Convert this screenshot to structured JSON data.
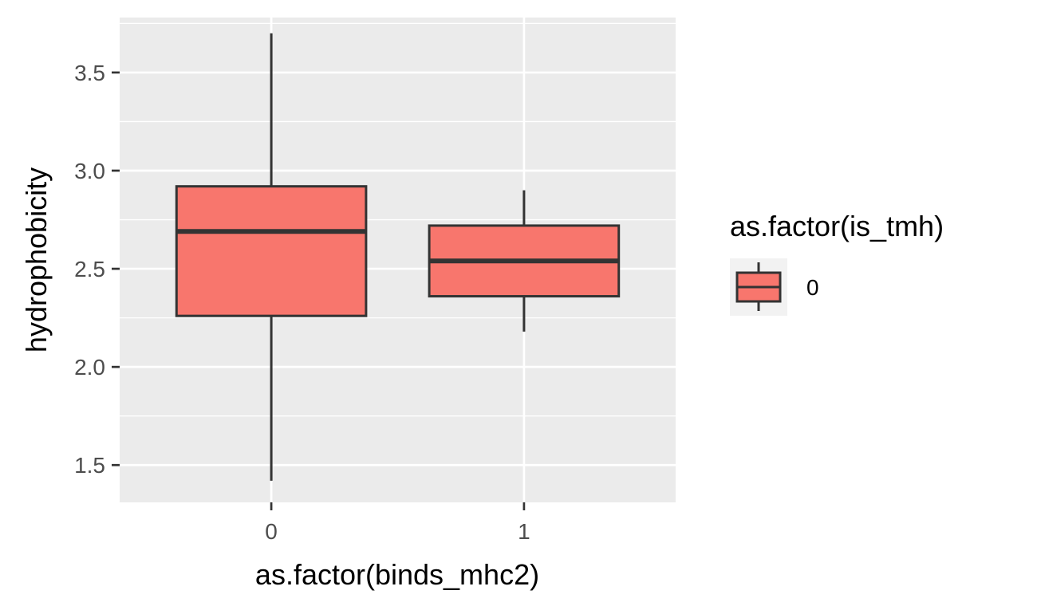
{
  "chart_data": {
    "type": "boxplot",
    "title": "",
    "xlabel": "as.factor(binds_mhc2)",
    "ylabel": "hydrophobicity",
    "categories": [
      "0",
      "1"
    ],
    "ylim": [
      1.31,
      3.78
    ],
    "yticks": [
      1.5,
      2.0,
      2.5,
      3.0,
      3.5
    ],
    "ytick_labels": [
      "1.5",
      "2.0",
      "2.5",
      "3.0",
      "3.5"
    ],
    "grid": true,
    "legend": {
      "title": "as.factor(is_tmh)",
      "position": "right",
      "entries": [
        "0"
      ]
    },
    "series": [
      {
        "name": "0",
        "color": "#F8766D",
        "boxes": [
          {
            "category": "0",
            "min": 1.42,
            "q1": 2.26,
            "median": 2.69,
            "q3": 2.92,
            "max": 3.7
          },
          {
            "category": "1",
            "min": 2.18,
            "q1": 2.36,
            "median": 2.54,
            "q3": 2.72,
            "max": 2.9
          }
        ]
      }
    ],
    "colors": {
      "panel": "#EBEBEB",
      "grid": "#FFFFFF",
      "outline": "#333333",
      "tick_text": "#4D4D4D",
      "axis_title": "#000000"
    }
  }
}
